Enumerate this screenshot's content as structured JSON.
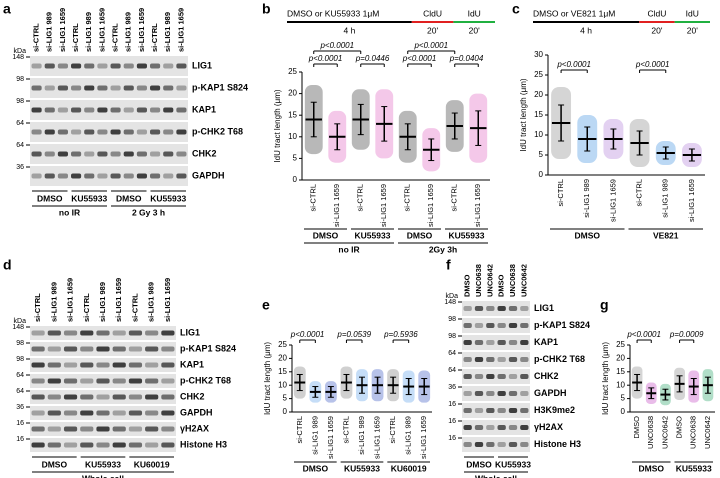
{
  "blots": [
    {
      "panel": "a",
      "kda_label": "kDa",
      "lanes": [
        "si-CTRL",
        "si-LIG1 989",
        "si-LIG1 1659",
        "si-CTRL",
        "si-LIG1 989",
        "si-LIG1 1659",
        "si-CTRL",
        "si-LIG1 989",
        "si-LIG1 1659",
        "si-CTRL",
        "si-LIG1 989",
        "si-LIG1 1659"
      ],
      "rows": [
        "LIG1",
        "p-KAP1 S824",
        "KAP1",
        "p-CHK2 T68",
        "CHK2",
        "GAPDH"
      ],
      "kda": [
        148,
        98,
        98,
        64,
        64,
        36
      ],
      "groups": [
        "DMSO",
        "KU55933",
        "DMSO",
        "KU55933"
      ],
      "conditions": [
        "no IR",
        "2 Gy 3 h"
      ]
    },
    {
      "panel": "d",
      "kda_label": "kDa",
      "lanes": [
        "si-CTRL",
        "si-LIG1 989",
        "si-LIG1 1659",
        "si-CTRL",
        "si-LIG1 989",
        "si-LIG1 1659",
        "si-CTRL",
        "si-LIG1 989",
        "si-LIG1 1659"
      ],
      "rows": [
        "LIG1",
        "p-KAP1 S824",
        "KAP1",
        "p-CHK2 T68",
        "CHK2",
        "GAPDH",
        "γH2AX",
        "Histone H3"
      ],
      "kda": [
        148,
        98,
        98,
        64,
        64,
        36,
        16,
        16
      ],
      "groups": [
        "DMSO",
        "KU55933",
        "KU60019"
      ],
      "conditions": [
        "Whole cell"
      ]
    },
    {
      "panel": "f",
      "kda_label": "kDa",
      "lanes": [
        "DMSO",
        "UNC0638",
        "UNC0642",
        "DMSO",
        "UNC0638",
        "UNC0642"
      ],
      "rows": [
        "LIG1",
        "p-KAP1 S824",
        "KAP1",
        "p-CHK2 T68",
        "CHK2",
        "GAPDH",
        "H3K9me2",
        "γH2AX",
        "Histone H3"
      ],
      "kda": [
        148,
        98,
        98,
        64,
        64,
        36,
        16,
        16,
        16
      ],
      "groups": [
        "DMSO",
        "KU55933"
      ],
      "conditions": [
        "Whole cell"
      ]
    }
  ],
  "chart_data": [
    {
      "type": "dot",
      "panel": "b",
      "ylabel": "IdU tract length (μm)",
      "protocol": {
        "treatment": "DMSO  or KU55933 1μM",
        "time": "4 h",
        "labels": [
          "CldU",
          "IdU"
        ],
        "pulses": [
          "20'",
          "20'"
        ]
      },
      "categories": [
        "si-CTRL",
        "si-LIG1 1659",
        "si-CTRL",
        "si-LIG1 1659",
        "si-CTRL",
        "si-LIG1 1659",
        "si-CTRL",
        "si-LIG1 1659"
      ],
      "colors": [
        "#333333",
        "#e060c0",
        "#333333",
        "#e060c0",
        "#333333",
        "#e060c0",
        "#333333",
        "#e060c0"
      ],
      "values": [
        14,
        10,
        14,
        13,
        10,
        7,
        12.5,
        12
      ],
      "errors": [
        4,
        3,
        3.5,
        4,
        3,
        2.5,
        3,
        4
      ],
      "ylim": [
        0,
        25
      ],
      "yticks": [
        0,
        5,
        10,
        15,
        20,
        25
      ],
      "groups": [
        "DMSO",
        "KU55933",
        "DMSO",
        "KU55933"
      ],
      "conditions": [
        "no IR",
        "2Gy 3h"
      ],
      "annotations": [
        {
          "text": "p<0.0001",
          "from": 0,
          "to": 1
        },
        {
          "text": "p=0.0446",
          "from": 2,
          "to": 3
        },
        {
          "text": "p<0.0001",
          "from": 0,
          "to": 2
        },
        {
          "text": "p<0.0001",
          "from": 4,
          "to": 5
        },
        {
          "text": "p=0.0404",
          "from": 6,
          "to": 7
        },
        {
          "text": "p<0.0001",
          "from": 4,
          "to": 6
        }
      ]
    },
    {
      "type": "dot",
      "panel": "c",
      "ylabel": "IdU tract length (μm)",
      "protocol": {
        "treatment": "DMSO  or VE821 1μM",
        "time": "4 h",
        "labels": [
          "CldU",
          "IdU"
        ],
        "pulses": [
          "20'",
          "20'"
        ]
      },
      "categories": [
        "si-CTRL",
        "si-LIG1 989",
        "si-LIG1 1659",
        "si-CTRL",
        "si-LIG1 989",
        "si-LIG1 1659"
      ],
      "colors": [
        "#888888",
        "#3d8fe0",
        "#b07cd8",
        "#888888",
        "#3d8fe0",
        "#b07cd8"
      ],
      "values": [
        13,
        9,
        9,
        8,
        5.5,
        5
      ],
      "errors": [
        4.5,
        3,
        2.5,
        3,
        1.5,
        1.5
      ],
      "ylim": [
        0,
        30
      ],
      "yticks": [
        0,
        5,
        10,
        15,
        20,
        25,
        30
      ],
      "groups": [
        "DMSO",
        "VE821"
      ],
      "annotations": [
        {
          "text": "p<0.0001",
          "from": 0,
          "to": 1
        },
        {
          "text": "p<0.0001",
          "from": 3,
          "to": 4
        }
      ]
    },
    {
      "type": "dot",
      "panel": "e",
      "ylabel": "IdU tract length (μm)",
      "categories": [
        "si-CTRL",
        "si-LIG1 989",
        "si-LIG1 1659",
        "si-CTRL",
        "si-LIG1 989",
        "si-LIG1 1659",
        "si-CTRL",
        "si-LIG1 989",
        "si-LIG1 1659"
      ],
      "colors": [
        "#777777",
        "#5a9ee8",
        "#3050c0",
        "#777777",
        "#5a9ee8",
        "#3050c0",
        "#777777",
        "#5a9ee8",
        "#3050c0"
      ],
      "values": [
        11,
        7.5,
        7.5,
        11,
        10,
        10,
        10,
        9.5,
        9.5
      ],
      "errors": [
        3,
        2,
        2,
        3,
        3,
        3,
        3,
        3,
        3
      ],
      "ylim": [
        0,
        25
      ],
      "yticks": [
        0,
        5,
        10,
        15,
        20,
        25
      ],
      "groups": [
        "DMSO",
        "KU55933",
        "KU60019"
      ],
      "annotations": [
        {
          "text": "p<0.0001",
          "from": 0,
          "to": 1
        },
        {
          "text": "p=0.0539",
          "from": 3,
          "to": 4
        },
        {
          "text": "p=0.5936",
          "from": 6,
          "to": 7
        }
      ]
    },
    {
      "type": "dot",
      "panel": "g",
      "ylabel": "IdU tract length (μm)",
      "categories": [
        "DMSO",
        "UNC0638",
        "UNC0642",
        "DMSO",
        "UNC0638",
        "UNC0642"
      ],
      "colors": [
        "#888888",
        "#c040c0",
        "#20a060",
        "#888888",
        "#c040c0",
        "#20a060"
      ],
      "values": [
        11,
        7,
        6.5,
        10.5,
        9.5,
        10
      ],
      "errors": [
        3,
        2,
        2,
        3,
        3,
        3
      ],
      "ylim": [
        0,
        25
      ],
      "yticks": [
        0,
        5,
        10,
        15,
        20,
        25
      ],
      "groups": [
        "DMSO",
        "KU55933"
      ],
      "annotations": [
        {
          "text": "p<0.0001",
          "from": 0,
          "to": 1
        },
        {
          "text": "p=0.0009",
          "from": 3,
          "to": 4
        }
      ]
    }
  ]
}
